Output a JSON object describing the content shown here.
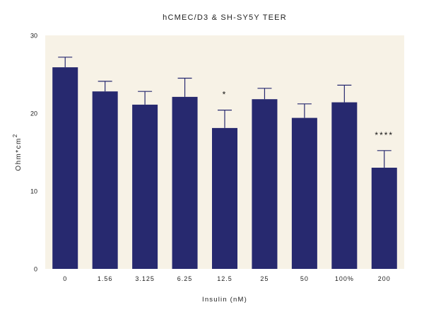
{
  "chart_data": {
    "type": "bar",
    "title": "hCMEC/D3 & SH-SY5Y TEER",
    "xlabel": "Insulin (nM)",
    "ylabel": "Ohm*cm",
    "ylabel_superscript": "2",
    "ylim": [
      0,
      30
    ],
    "yticks": [
      "0",
      "10",
      "20",
      "30"
    ],
    "categories": [
      "0",
      "1.56",
      "3.125",
      "6.25",
      "12.5",
      "25",
      "50",
      "100%",
      "200"
    ],
    "values": [
      25.9,
      22.8,
      21.1,
      22.1,
      18.1,
      21.8,
      19.4,
      21.4,
      13.0
    ],
    "errors": [
      1.3,
      1.3,
      1.7,
      2.4,
      2.3,
      1.4,
      1.8,
      2.2,
      2.2
    ],
    "annotations": [
      "",
      "",
      "",
      "",
      "*",
      "",
      "",
      "",
      "****"
    ],
    "grid": false,
    "colors": {
      "bar": "#27296f",
      "plot_background": "#f7f2e6",
      "error_bar": "#27296f",
      "text": "#222222"
    }
  }
}
